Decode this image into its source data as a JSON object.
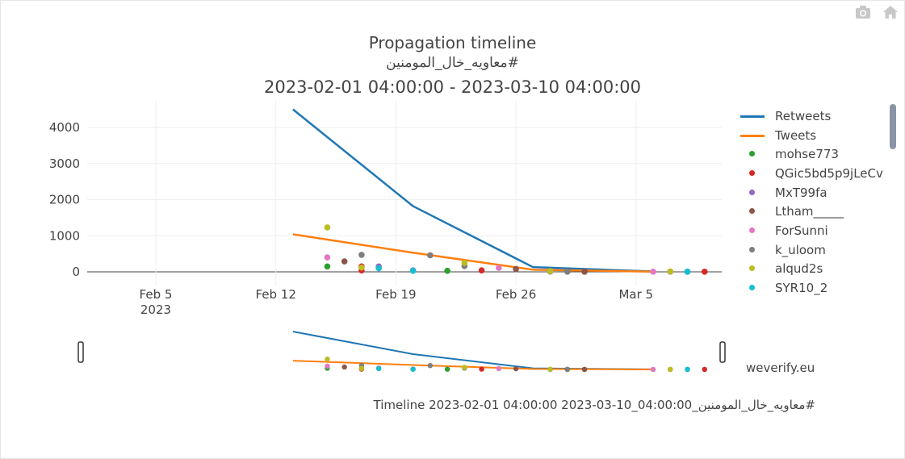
{
  "toolbar": {
    "icons": [
      "camera-icon",
      "home-icon"
    ]
  },
  "chart_data": {
    "type": "line",
    "title": "Propagation timeline",
    "subtitle_hashtag": "#معاويه_خال_المومنين",
    "subtitle_range": "2023-02-01 04:00:00 - 2023-03-10 04:00:00",
    "xlabel": "",
    "ylabel": "",
    "x_ticks": [
      {
        "date": "2023-02-05",
        "label": "Feb 5",
        "sub": "2023"
      },
      {
        "date": "2023-02-12",
        "label": "Feb 12",
        "sub": ""
      },
      {
        "date": "2023-02-19",
        "label": "Feb 19",
        "sub": ""
      },
      {
        "date": "2023-02-26",
        "label": "Feb 26",
        "sub": ""
      },
      {
        "date": "2023-03-05",
        "label": "Mar 5",
        "sub": ""
      }
    ],
    "xlim": [
      "2023-02-01",
      "2023-03-10"
    ],
    "ylim": [
      -350,
      4800
    ],
    "y_ticks": [
      0,
      1000,
      2000,
      3000,
      4000
    ],
    "grid": true,
    "legend_position": "right",
    "series": [
      {
        "name": "Retweets",
        "mode": "lines",
        "color": "#1f77b4",
        "x": [
          "2023-02-13",
          "2023-02-20",
          "2023-02-27",
          "2023-03-06"
        ],
        "y": [
          4500,
          1820,
          130,
          10
        ]
      },
      {
        "name": "Tweets",
        "mode": "lines",
        "color": "#ff7f0e",
        "x": [
          "2023-02-13",
          "2023-02-20",
          "2023-02-27",
          "2023-03-06"
        ],
        "y": [
          1040,
          530,
          60,
          5
        ]
      },
      {
        "name": "mohse773",
        "mode": "markers",
        "color": "#2ca02c",
        "x": [
          "2023-02-15",
          "2023-02-22",
          "2023-02-28",
          "2023-03-01",
          "2023-03-07"
        ],
        "y": [
          150,
          30,
          10,
          5,
          5
        ]
      },
      {
        "name": "QGic5bd5p9jLeCv",
        "mode": "markers",
        "color": "#d62728",
        "x": [
          "2023-02-17",
          "2023-02-17",
          "2023-02-24",
          "2023-03-02",
          "2023-03-09"
        ],
        "y": [
          150,
          40,
          40,
          5,
          5
        ]
      },
      {
        "name": "MxT99fa",
        "mode": "markers",
        "color": "#9467bd",
        "x": [
          "2023-02-18",
          "2023-02-20",
          "2023-02-28",
          "2023-03-08"
        ],
        "y": [
          150,
          40,
          10,
          5
        ]
      },
      {
        "name": "Ltham_____",
        "mode": "markers",
        "color": "#8c564b",
        "x": [
          "2023-02-16",
          "2023-02-26",
          "2023-03-01",
          "2023-03-02"
        ],
        "y": [
          290,
          80,
          10,
          5
        ]
      },
      {
        "name": "ForSunni",
        "mode": "markers",
        "color": "#e377c2",
        "x": [
          "2023-02-15",
          "2023-02-25",
          "2023-03-06",
          "2023-03-07"
        ],
        "y": [
          400,
          110,
          5,
          5
        ]
      },
      {
        "name": "k_uloom",
        "mode": "markers",
        "color": "#7f7f7f",
        "x": [
          "2023-02-17",
          "2023-02-21",
          "2023-02-23",
          "2023-03-01"
        ],
        "y": [
          470,
          460,
          160,
          10
        ]
      },
      {
        "name": "alqud2s",
        "mode": "markers",
        "color": "#bcbd22",
        "x": [
          "2023-02-15",
          "2023-02-17",
          "2023-02-23",
          "2023-02-28",
          "2023-03-07"
        ],
        "y": [
          1230,
          120,
          250,
          20,
          10
        ]
      },
      {
        "name": "SYR10_2",
        "mode": "markers",
        "color": "#17becf",
        "x": [
          "2023-02-18",
          "2023-02-20",
          "2023-03-08",
          "2023-03-08"
        ],
        "y": [
          100,
          30,
          5,
          5
        ]
      }
    ]
  },
  "rangeslider": {
    "watermark": "weverify.eu"
  },
  "footer": {
    "caption": "#معاويه_خال_المومنين_Timeline 2023-02-01 04:00:00 2023-03-10_04:00:00"
  }
}
